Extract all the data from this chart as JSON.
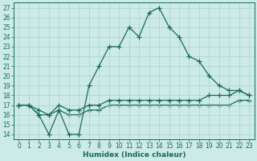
{
  "xlabel": "Humidex (Indice chaleur)",
  "background_color": "#cceae6",
  "line_color": "#1a6b5a",
  "grid_color": "#aad4ce",
  "xlim": [
    -0.5,
    23.5
  ],
  "ylim": [
    13.5,
    27.5
  ],
  "xticks": [
    0,
    1,
    2,
    3,
    4,
    5,
    6,
    7,
    8,
    9,
    10,
    11,
    12,
    13,
    14,
    15,
    16,
    17,
    18,
    19,
    20,
    21,
    22,
    23
  ],
  "yticks": [
    14,
    15,
    16,
    17,
    18,
    19,
    20,
    21,
    22,
    23,
    24,
    25,
    26,
    27
  ],
  "series1_x": [
    0,
    1,
    2,
    3,
    4,
    5,
    6,
    7,
    8,
    9,
    10,
    11,
    12,
    13,
    14,
    15,
    16,
    17,
    18,
    19,
    20,
    21,
    22,
    23
  ],
  "series1_y": [
    17.0,
    17.0,
    16.0,
    14.0,
    16.5,
    14.0,
    14.0,
    19.0,
    21.0,
    23.0,
    23.0,
    25.0,
    24.0,
    26.5,
    27.0,
    25.0,
    24.0,
    22.0,
    21.5,
    20.0,
    19.0,
    18.5,
    18.5,
    18.0
  ],
  "series2_x": [
    0,
    1,
    2,
    3,
    4,
    5,
    6,
    7,
    8,
    9,
    10,
    11,
    12,
    13,
    14,
    15,
    16,
    17,
    18,
    19,
    20,
    21,
    22,
    23
  ],
  "series2_y": [
    17.0,
    17.0,
    16.5,
    16.0,
    17.0,
    16.5,
    16.5,
    17.0,
    17.0,
    17.5,
    17.5,
    17.5,
    17.5,
    17.5,
    17.5,
    17.5,
    17.5,
    17.5,
    17.5,
    18.0,
    18.0,
    18.0,
    18.5,
    18.0
  ],
  "series3_x": [
    0,
    1,
    2,
    3,
    4,
    5,
    6,
    7,
    8,
    9,
    10,
    11,
    12,
    13,
    14,
    15,
    16,
    17,
    18,
    19,
    20,
    21,
    22,
    23
  ],
  "series3_y": [
    17.0,
    17.0,
    16.0,
    16.0,
    16.5,
    16.0,
    16.0,
    16.5,
    16.5,
    17.0,
    17.0,
    17.0,
    17.0,
    17.0,
    17.0,
    17.0,
    17.0,
    17.0,
    17.0,
    17.0,
    17.0,
    17.0,
    17.5,
    17.5
  ],
  "marker": "+",
  "markersize": 4,
  "linewidth": 0.9,
  "tick_fontsize": 5.5,
  "xlabel_fontsize": 6.5
}
